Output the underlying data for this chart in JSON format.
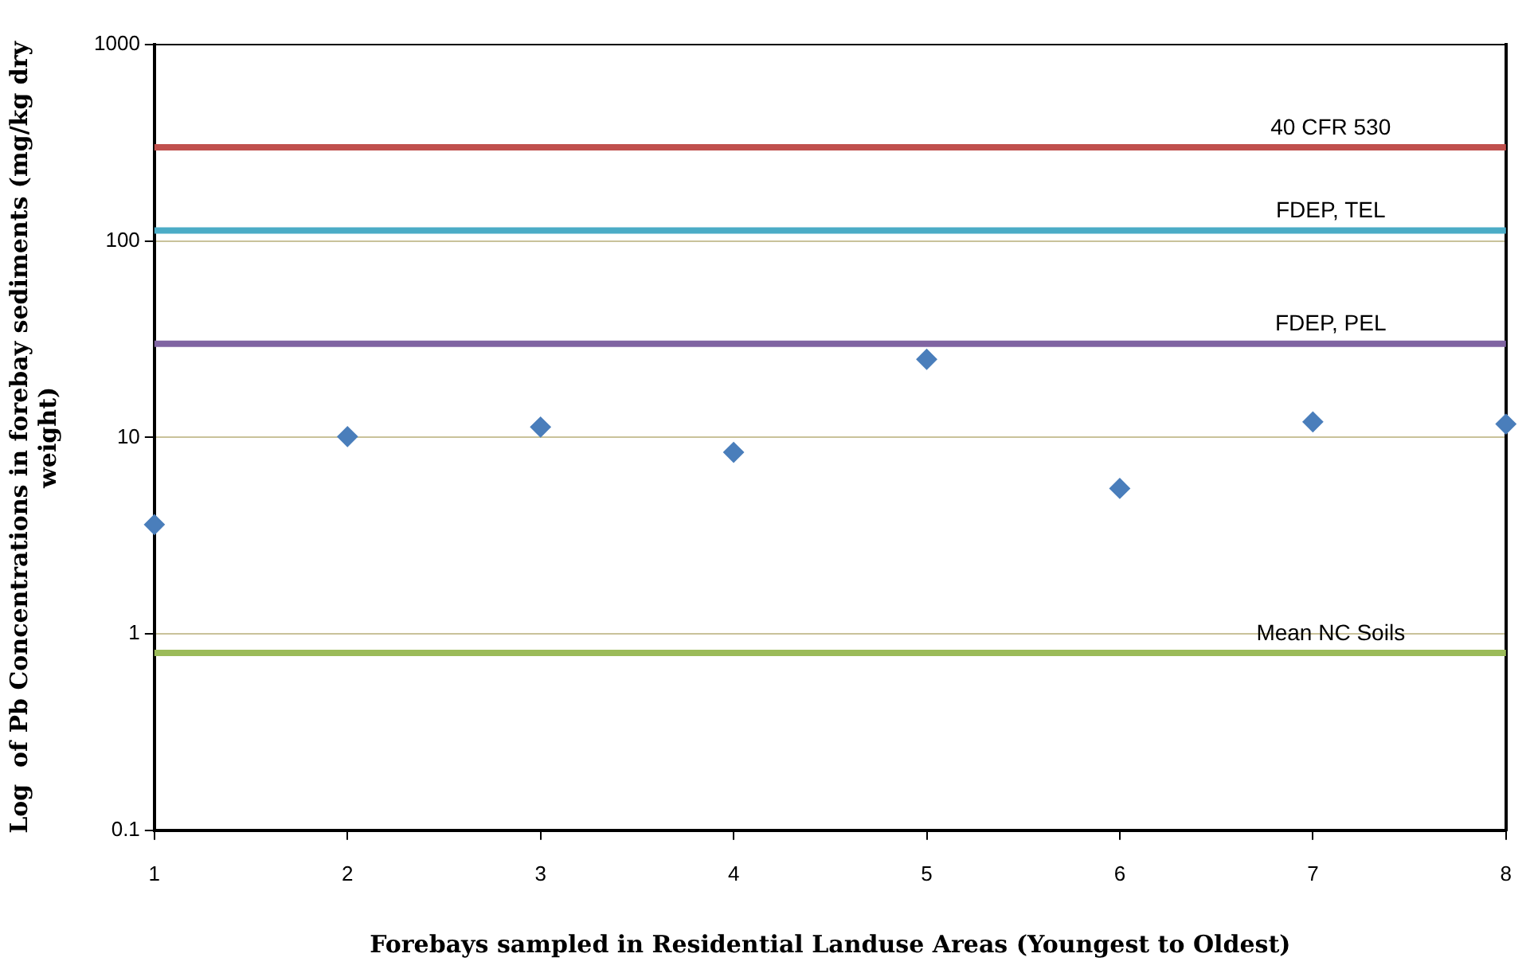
{
  "chart_data": {
    "type": "scatter",
    "xlabel": "Forebays sampled in Residential Landuse Areas (Youngest to Oldest)",
    "ylabel": "Log  of Pb Concentrations in forebay sediments (mg/kg dry weight)",
    "x": [
      1,
      2,
      3,
      4,
      5,
      6,
      7,
      8
    ],
    "values": [
      3.6,
      10.1,
      11.3,
      8.4,
      25,
      5.5,
      12.0,
      11.7
    ],
    "color": "#4a7ebb",
    "marker": "diamond",
    "log": "y",
    "xlim": [
      1,
      8
    ],
    "xticks": [
      1,
      2,
      3,
      4,
      5,
      6,
      7,
      8
    ],
    "ylim": [
      0.1,
      1000
    ],
    "yticks": [
      0.1,
      1,
      10,
      100,
      1000
    ],
    "grid": "y",
    "ref_lines": [
      {
        "axis": "y",
        "value": 300,
        "label": "40 CFR 530",
        "color": "#c0504d"
      },
      {
        "axis": "y",
        "value": 113,
        "label": "FDEP, TEL",
        "color": "#4bacc6"
      },
      {
        "axis": "y",
        "value": 30,
        "label": "FDEP, PEL",
        "color": "#8064a2"
      },
      {
        "axis": "y",
        "value": 0.8,
        "label": "Mean NC Soils",
        "color": "#9bbb59"
      }
    ]
  }
}
